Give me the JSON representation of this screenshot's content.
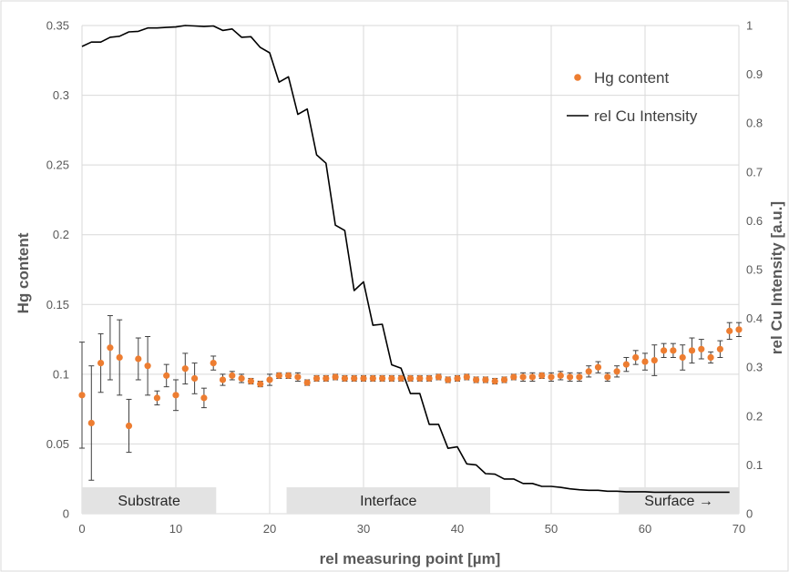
{
  "chart_data": {
    "type": "scatter",
    "xlabel": "rel measuring point [µm]",
    "ylabel": "Hg content",
    "y2label": "rel Cu Intensity [a.u.]",
    "xlim": [
      0,
      70
    ],
    "ylim": [
      0,
      0.35
    ],
    "y2lim": [
      0,
      1
    ],
    "x_ticks": [
      "0",
      "10",
      "20",
      "30",
      "40",
      "50",
      "60",
      "70"
    ],
    "y_ticks": [
      "0",
      "0.05",
      "0.1",
      "0.15",
      "0.2",
      "0.25",
      "0.3",
      "0.35"
    ],
    "y2_ticks": [
      "0",
      "0.1",
      "0.2",
      "0.3",
      "0.4",
      "0.5",
      "0.6",
      "0.7",
      "0.8",
      "0.9",
      "1"
    ],
    "grid": true,
    "legend_position": "top-right",
    "colors": {
      "hg": "#ED7D31",
      "cu": "#000000",
      "region_fill": "#E3E3E3",
      "grid": "#D9D9D9",
      "errorbar": "#404040"
    },
    "regions": [
      {
        "label": "Substrate",
        "x_start": 0,
        "x_end": 14.3
      },
      {
        "label": "Interface",
        "x_start": 21.8,
        "x_end": 43.5
      },
      {
        "label": "Surface →",
        "x_start": 57.2,
        "x_end": 70
      }
    ],
    "series": [
      {
        "name": "Hg content",
        "axis": "left",
        "kind": "scatter",
        "x": [
          0,
          1,
          2,
          3,
          4,
          5,
          6,
          7,
          8,
          9,
          10,
          11,
          12,
          13,
          14,
          15,
          16,
          17,
          18,
          19,
          20,
          21,
          22,
          23,
          24,
          25,
          26,
          27,
          28,
          29,
          30,
          31,
          32,
          33,
          34,
          35,
          36,
          37,
          38,
          39,
          40,
          41,
          42,
          43,
          44,
          45,
          46,
          47,
          48,
          49,
          50,
          51,
          52,
          53,
          54,
          55,
          56,
          57,
          58,
          59,
          60,
          61,
          62,
          63,
          64,
          65,
          66,
          67,
          68,
          69,
          70
        ],
        "y": [
          0.085,
          0.065,
          0.108,
          0.119,
          0.112,
          0.063,
          0.111,
          0.106,
          0.083,
          0.099,
          0.085,
          0.104,
          0.097,
          0.083,
          0.108,
          0.096,
          0.099,
          0.097,
          0.095,
          0.093,
          0.096,
          0.099,
          0.099,
          0.098,
          0.094,
          0.097,
          0.097,
          0.098,
          0.097,
          0.097,
          0.097,
          0.097,
          0.097,
          0.097,
          0.097,
          0.097,
          0.097,
          0.097,
          0.098,
          0.096,
          0.097,
          0.098,
          0.096,
          0.096,
          0.095,
          0.096,
          0.098,
          0.098,
          0.098,
          0.099,
          0.098,
          0.099,
          0.098,
          0.098,
          0.102,
          0.105,
          0.098,
          0.102,
          0.107,
          0.112,
          0.109,
          0.11,
          0.117,
          0.117,
          0.112,
          0.117,
          0.118,
          0.112,
          0.118,
          0.131,
          0.132
        ],
        "error": [
          0.038,
          0.041,
          0.021,
          0.023,
          0.027,
          0.019,
          0.015,
          0.021,
          0.005,
          0.008,
          0.011,
          0.011,
          0.011,
          0.007,
          0.005,
          0.004,
          0.003,
          0.003,
          0.002,
          0.002,
          0.004,
          0.002,
          0.002,
          0.003,
          0.002,
          0.002,
          0.002,
          0.002,
          0.002,
          0.002,
          0.002,
          0.002,
          0.002,
          0.002,
          0.002,
          0.002,
          0.002,
          0.002,
          0.002,
          0.002,
          0.002,
          0.002,
          0.002,
          0.002,
          0.002,
          0.002,
          0.002,
          0.003,
          0.003,
          0.002,
          0.003,
          0.003,
          0.003,
          0.003,
          0.004,
          0.004,
          0.003,
          0.004,
          0.005,
          0.005,
          0.006,
          0.011,
          0.005,
          0.005,
          0.009,
          0.009,
          0.007,
          0.004,
          0.006,
          0.006,
          0.005
        ]
      },
      {
        "name": "rel Cu Intensity",
        "axis": "right",
        "kind": "line",
        "x": [
          0,
          1,
          2,
          3,
          4,
          5,
          6,
          7,
          8,
          9,
          10,
          11,
          12,
          13,
          14,
          15,
          16,
          17,
          18,
          19,
          20,
          21,
          22,
          23,
          24,
          25,
          26,
          27,
          28,
          29,
          30,
          31,
          32,
          33,
          34,
          35,
          36,
          37,
          38,
          39,
          40,
          41,
          42,
          43,
          44,
          45,
          46,
          47,
          48,
          49,
          50,
          51,
          52,
          53,
          54,
          55,
          56,
          57,
          58,
          59,
          60,
          61,
          62,
          63,
          64,
          65,
          66,
          67,
          68,
          69
        ],
        "y": [
          0.957,
          0.966,
          0.966,
          0.976,
          0.978,
          0.987,
          0.988,
          0.995,
          0.995,
          0.996,
          0.997,
          1.0,
          0.999,
          0.998,
          0.999,
          0.99,
          0.993,
          0.976,
          0.977,
          0.955,
          0.944,
          0.884,
          0.895,
          0.818,
          0.829,
          0.735,
          0.718,
          0.591,
          0.58,
          0.457,
          0.475,
          0.386,
          0.388,
          0.305,
          0.298,
          0.246,
          0.246,
          0.183,
          0.183,
          0.134,
          0.137,
          0.102,
          0.1,
          0.082,
          0.081,
          0.071,
          0.071,
          0.062,
          0.062,
          0.056,
          0.056,
          0.054,
          0.051,
          0.049,
          0.048,
          0.048,
          0.046,
          0.046,
          0.045,
          0.045,
          0.045,
          0.044,
          0.044,
          0.044,
          0.044,
          0.044,
          0.044,
          0.044,
          0.044,
          0.044
        ]
      }
    ]
  }
}
